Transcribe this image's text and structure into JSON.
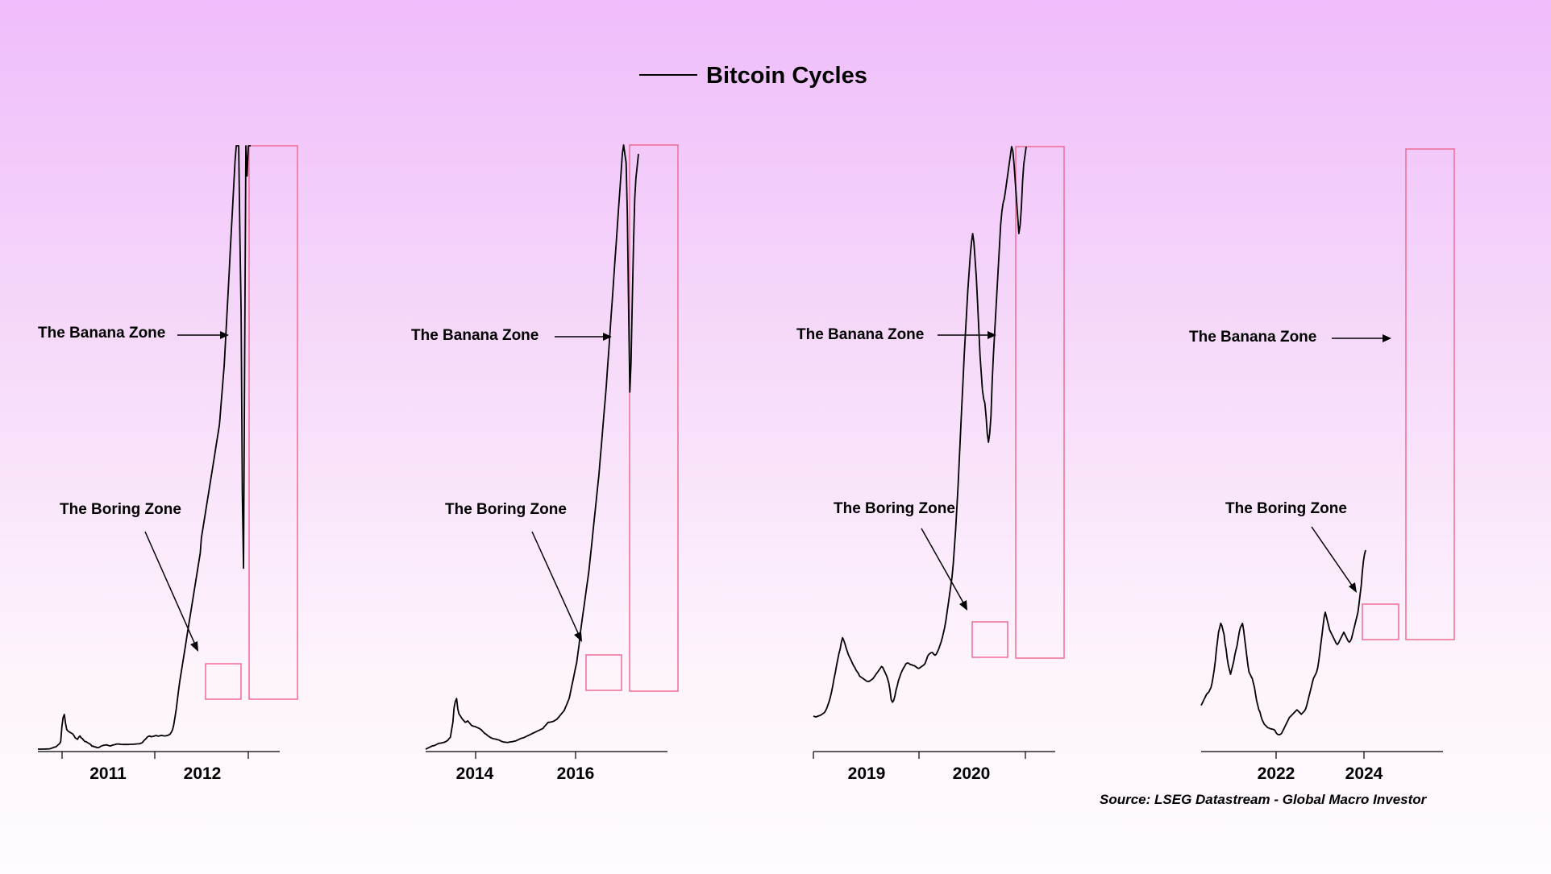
{
  "title": "Bitcoin Cycles",
  "source": "Source: LSEG Datastream - Global Macro Investor",
  "colors": {
    "line": "#000000",
    "box": "#f06c93",
    "bg_top": "#efbdfb",
    "bg_bottom": "#fffbfe"
  },
  "labels": {
    "banana": "The Banana Zone",
    "boring": "The Boring Zone"
  },
  "chart_data": [
    {
      "type": "line",
      "title": "",
      "x_ticks": [
        "2011",
        "2012"
      ],
      "series": [
        {
          "name": "",
          "values": [
            0,
            0,
            0,
            0,
            1,
            1,
            1,
            2,
            2,
            3,
            5,
            10,
            16,
            22,
            28,
            30,
            45,
            60,
            72,
            100,
            300,
            420,
            460,
            340,
            260,
            240,
            230,
            220,
            210,
            200,
            180,
            150,
            140,
            130,
            160,
            175,
            150,
            140,
            120,
            100,
            100,
            90,
            80,
            70,
            60,
            40,
            40,
            30,
            30,
            20,
            20,
            25,
            35,
            42,
            48,
            52,
            55,
            58,
            52,
            47,
            43,
            46,
            53,
            58,
            60,
            65,
            68,
            68,
            66,
            64,
            63,
            62,
            62,
            63,
            62,
            62,
            63,
            64,
            64,
            65,
            65,
            67,
            68,
            70,
            71,
            74,
            80,
            90,
            110,
            125,
            140,
            160,
            170,
            175,
            165,
            168,
            170,
            175,
            180,
            178,
            172,
            175,
            180,
            182,
            178,
            175,
            176,
            178,
            183,
            190,
            200,
            225,
            260,
            320,
            420,
            520,
            650,
            780,
            900,
            1000,
            1100,
            1200,
            1300,
            1400,
            1500,
            1600,
            1700,
            1800,
            1900,
            2000,
            2100,
            2200,
            2300,
            2400,
            2500,
            2600,
            2800,
            2900,
            3000,
            3100,
            3200,
            3300,
            3400,
            3500,
            3600,
            3700,
            3800,
            3900,
            4000,
            4100,
            4200,
            4300,
            4500,
            4700,
            4900,
            5100,
            5400,
            5700,
            6000,
            6300,
            6600,
            6900,
            7200,
            7500,
            7800,
            8000,
            8000,
            8000,
            6800,
            5800,
            3400,
            2400,
            5200,
            8000,
            7600,
            8000,
            8000,
            8000
          ]
        }
      ],
      "annotations": [
        "The Banana Zone",
        "The Boring Zone"
      ]
    },
    {
      "type": "line",
      "title": "",
      "x_ticks": [
        "2014",
        "2016"
      ],
      "series": [
        {
          "name": "",
          "values": [
            0,
            20,
            40,
            60,
            80,
            100,
            110,
            120,
            140,
            160,
            180,
            200,
            200,
            210,
            220,
            230,
            250,
            270,
            300,
            360,
            400,
            650,
            900,
            1400,
            1600,
            1700,
            1350,
            1180,
            1120,
            1050,
            1000,
            950,
            900,
            920,
            950,
            900,
            850,
            800,
            780,
            770,
            760,
            740,
            720,
            700,
            680,
            650,
            600,
            560,
            520,
            500,
            460,
            430,
            400,
            380,
            360,
            350,
            340,
            330,
            320,
            310,
            290,
            270,
            250,
            240,
            235,
            230,
            225,
            230,
            240,
            245,
            250,
            260,
            270,
            280,
            300,
            320,
            340,
            360,
            370,
            380,
            400,
            420,
            440,
            460,
            480,
            500,
            520,
            540,
            560,
            580,
            600,
            620,
            640,
            660,
            680,
            700,
            760,
            800,
            850,
            900,
            900,
            910,
            920,
            930,
            950,
            980,
            1000,
            1050,
            1100,
            1150,
            1200,
            1250,
            1300,
            1400,
            1500,
            1600,
            1700,
            1900,
            2100,
            2300,
            2500,
            2700,
            2900,
            3200,
            3500,
            3900,
            4200,
            4500,
            4800,
            5100,
            5400,
            5700,
            6000,
            6400,
            6800,
            7200,
            7600,
            8000,
            8400,
            8800,
            9200,
            9700,
            10200,
            10700,
            11200,
            11700,
            12200,
            12800,
            13400,
            14000,
            14600,
            15200,
            15800,
            16400,
            17000,
            17600,
            18200,
            18800,
            19400,
            20000,
            20300,
            20000,
            19700,
            18000,
            15000,
            12000,
            13000,
            15000,
            17000,
            18500,
            19200,
            19600,
            20000
          ]
        }
      ],
      "annotations": [
        "The Banana Zone",
        "The Boring Zone"
      ]
    },
    {
      "type": "line",
      "title": "",
      "x_ticks": [
        "2019",
        "2020"
      ],
      "series": [
        {
          "name": "",
          "values": [
            3500,
            3450,
            3400,
            3450,
            3500,
            3550,
            3600,
            3700,
            3800,
            3900,
            4100,
            4400,
            4800,
            5200,
            5700,
            6300,
            7000,
            7800,
            8500,
            9300,
            10000,
            10700,
            11200,
            12000,
            12500,
            12200,
            11800,
            11300,
            10900,
            10500,
            10200,
            9900,
            9600,
            9300,
            9100,
            8800,
            8600,
            8400,
            8100,
            8000,
            7900,
            7800,
            7700,
            7600,
            7500,
            7500,
            7500,
            7600,
            7700,
            7800,
            8000,
            8200,
            8400,
            8600,
            8800,
            9000,
            9200,
            9100,
            8800,
            8500,
            8200,
            7800,
            7300,
            6500,
            5400,
            5100,
            5300,
            5800,
            6500,
            7000,
            7600,
            8000,
            8400,
            8700,
            9000,
            9200,
            9500,
            9600,
            9600,
            9500,
            9400,
            9400,
            9300,
            9300,
            9200,
            9100,
            9000,
            9000,
            9100,
            9200,
            9300,
            9400,
            9600,
            10000,
            10400,
            10600,
            10700,
            10800,
            10800,
            10600,
            10500,
            10600,
            10900,
            11200,
            11600,
            12000,
            12500,
            13100,
            13700,
            14500,
            15500,
            16500,
            17500,
            18500,
            19500,
            21000,
            23000,
            25000,
            27500,
            30000,
            33000,
            36000,
            39000,
            42000,
            45000,
            47500,
            50000,
            52500,
            54500,
            56500,
            58000,
            59000,
            58000,
            56000,
            54000,
            51000,
            48000,
            45000,
            43000,
            41000,
            40000,
            39500,
            38000,
            36000,
            35000,
            36000,
            38000,
            42000,
            45000,
            47500,
            50000,
            52500,
            55000,
            57500,
            60000,
            61500,
            62500,
            63000,
            64000,
            65000,
            66000,
            67000,
            68000,
            69000,
            68500,
            67000,
            65000,
            63000,
            61000,
            59000,
            60000,
            62000,
            65000,
            67000,
            68000,
            69000
          ]
        }
      ],
      "annotations": [
        "The Banana Zone",
        "The Boring Zone"
      ]
    },
    {
      "type": "line",
      "title": "",
      "x_ticks": [
        "2022",
        "2024"
      ],
      "series": [
        {
          "name": "",
          "values": [
            30000,
            31000,
            32000,
            33000,
            34000,
            35000,
            35500,
            36000,
            37000,
            38000,
            40000,
            43000,
            46000,
            50000,
            55000,
            59000,
            63000,
            65000,
            67000,
            66000,
            64000,
            62000,
            58000,
            55000,
            51000,
            48000,
            46000,
            44000,
            46000,
            48000,
            50000,
            53000,
            55000,
            57000,
            60000,
            63000,
            65000,
            66000,
            67000,
            64000,
            60000,
            56000,
            52000,
            48000,
            45000,
            44000,
            43000,
            42000,
            40000,
            38000,
            35000,
            32000,
            30000,
            28000,
            27000,
            25000,
            23500,
            22500,
            21500,
            21000,
            20500,
            20000,
            19800,
            19600,
            19400,
            19300,
            19200,
            19000,
            18500,
            17500,
            17000,
            16800,
            16800,
            17000,
            17500,
            18500,
            19500,
            20500,
            21500,
            22500,
            23500,
            24500,
            25000,
            25500,
            26000,
            26500,
            27000,
            27500,
            28000,
            27500,
            27000,
            26500,
            26000,
            26500,
            27000,
            27500,
            28500,
            30000,
            32000,
            34000,
            36000,
            38000,
            40000,
            42000,
            43000,
            44000,
            45000,
            47000,
            50000,
            54000,
            58000,
            62000,
            66000,
            70000,
            72000,
            70000,
            68000,
            66000,
            64000,
            63000,
            62000,
            61000,
            60000,
            59000,
            58000,
            57500,
            58000,
            59000,
            60000,
            61000,
            62000,
            63000,
            62000,
            61000,
            60000,
            59000,
            58500,
            59000,
            60000,
            62000,
            64000,
            66000,
            68000,
            70000,
            72000,
            76000,
            80000,
            84000,
            90000,
            95000,
            98000,
            100000
          ]
        }
      ],
      "annotations": [
        "The Banana Zone",
        "The Boring Zone"
      ]
    }
  ]
}
